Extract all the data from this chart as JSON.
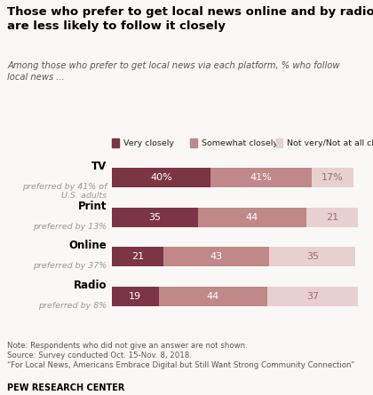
{
  "title": "Those who prefer to get local news online and by radio\nare less likely to follow it closely",
  "subtitle": "Among those who prefer to get local news via each platform, % who follow\nlocal news ...",
  "categories": [
    "TV",
    "Print",
    "Online",
    "Radio"
  ],
  "sublabels": [
    "preferred by 41% of\nU.S. adults",
    "preferred by 13%",
    "preferred by 37%",
    "preferred by 8%"
  ],
  "values": [
    [
      40,
      41,
      17
    ],
    [
      35,
      44,
      21
    ],
    [
      21,
      43,
      35
    ],
    [
      19,
      44,
      37
    ]
  ],
  "bar_labels": [
    [
      "40%",
      "41%",
      "17%"
    ],
    [
      "35",
      "44",
      "21"
    ],
    [
      "21",
      "43",
      "35"
    ],
    [
      "19",
      "44",
      "37"
    ]
  ],
  "colors": [
    "#7b3545",
    "#c08888",
    "#e8d0d0"
  ],
  "label_colors": [
    "white",
    "white",
    "#9a7070"
  ],
  "legend_labels": [
    "Very closely",
    "Somewhat closely",
    "Not very/Not at all closely"
  ],
  "note1": "Note: Respondents who did not give an answer are not shown.",
  "note2": "Source: Survey conducted Oct. 15-Nov. 8, 2018.",
  "note3": "“For Local News, Americans Embrace Digital but Still Want Strong Community Connection”",
  "footer": "PEW RESEARCH CENTER",
  "background_color": "#faf8f6"
}
